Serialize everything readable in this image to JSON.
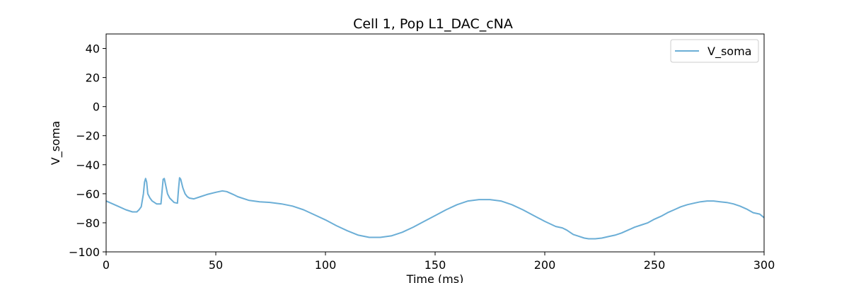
{
  "chart_data": {
    "type": "line",
    "title": "Cell 1, Pop L1_DAC_cNA",
    "xlabel": "Time (ms)",
    "ylabel": "V_soma",
    "xlim": [
      0,
      300
    ],
    "ylim": [
      -100,
      50
    ],
    "xticks": [
      0,
      50,
      100,
      150,
      200,
      250,
      300
    ],
    "yticks": [
      -100,
      -80,
      -60,
      -40,
      -20,
      0,
      20,
      40
    ],
    "grid": false,
    "legend_position": "top-right",
    "series": [
      {
        "name": "V_soma",
        "color": "#6baed6",
        "x": [
          0,
          3,
          6,
          9,
          12,
          14,
          15,
          16,
          17,
          17.5,
          18,
          18.5,
          19,
          20,
          21,
          23,
          25,
          25.5,
          26,
          26.5,
          27,
          28,
          29,
          31,
          32.5,
          33,
          33.5,
          34,
          35,
          36,
          37,
          38,
          40,
          43,
          46,
          50,
          53,
          55,
          58,
          60,
          65,
          70,
          75,
          80,
          85,
          90,
          95,
          100,
          105,
          110,
          115,
          120,
          125,
          130,
          135,
          140,
          145,
          150,
          155,
          160,
          165,
          170,
          175,
          180,
          185,
          190,
          195,
          200,
          205,
          208,
          210,
          213,
          215,
          218,
          220,
          223,
          226,
          229,
          232,
          235,
          238,
          241,
          244,
          247,
          250,
          253,
          256,
          259,
          262,
          265,
          268,
          271,
          274,
          277,
          280,
          283,
          286,
          289,
          292,
          295,
          298,
          300
        ],
        "y": [
          -65,
          -67,
          -69,
          -71,
          -72.5,
          -72.5,
          -71,
          -69,
          -60,
          -52,
          -49.5,
          -52,
          -60,
          -63,
          -65,
          -67,
          -67,
          -58,
          -50,
          -49.5,
          -53,
          -60,
          -63,
          -66,
          -66.5,
          -57,
          -49,
          -50,
          -56,
          -60,
          -62,
          -63,
          -63.5,
          -62,
          -60.5,
          -59,
          -58,
          -58.5,
          -60.5,
          -62,
          -64.5,
          -65.5,
          -66,
          -67,
          -68.5,
          -71,
          -74.5,
          -78,
          -82,
          -85.5,
          -88.5,
          -90,
          -90,
          -89,
          -86.5,
          -83,
          -79,
          -75,
          -71,
          -67.5,
          -65,
          -64,
          -64,
          -65,
          -67.5,
          -71,
          -75,
          -79,
          -82.5,
          -83.5,
          -85,
          -88,
          -89,
          -90.5,
          -91,
          -91,
          -90.5,
          -89.5,
          -88.5,
          -87,
          -85,
          -83,
          -81.5,
          -80,
          -77.5,
          -75.5,
          -73,
          -71,
          -69,
          -67.5,
          -66.5,
          -65.5,
          -65,
          -65,
          -65.5,
          -66,
          -67,
          -68.5,
          -70.5,
          -73,
          -74,
          -76.5
        ]
      }
    ]
  }
}
